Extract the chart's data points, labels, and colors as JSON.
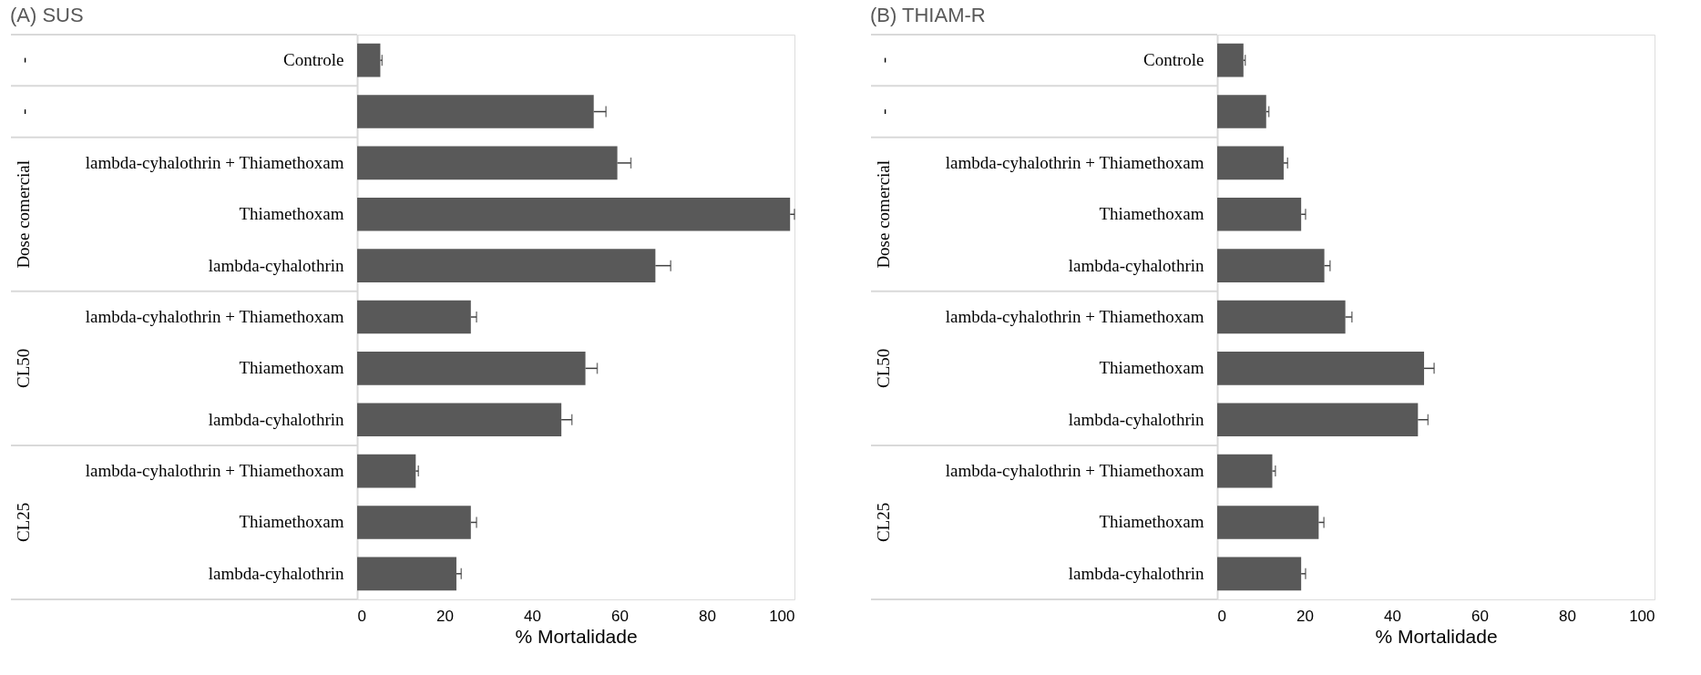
{
  "chart_data": [
    {
      "type": "bar",
      "orientation": "horizontal",
      "title": "(A) SUS",
      "xlabel": "% Mortalidade",
      "categories": [
        "Controle",
        null,
        "lambda-cyhalothrin + Thiamethoxam",
        "Thiamethoxam",
        "lambda-cyhalothrin",
        "lambda-cyhalothrin + Thiamethoxam",
        "Thiamethoxam",
        "lambda-cyhalothrin",
        "lambda-cyhalothrin + Thiamethoxam",
        "Thiamethoxam",
        "lambda-cyhalothrin"
      ],
      "values": [
        5.3,
        54.1,
        59.5,
        99.0,
        68.2,
        26.0,
        52.2,
        46.7,
        13.4,
        26.0,
        22.7
      ],
      "errors": [
        [
          5.3,
          5.7
        ],
        [
          54.1,
          56.9
        ],
        [
          59.5,
          62.6
        ],
        [
          99.0,
          100.0
        ],
        [
          68.2,
          71.7
        ],
        [
          26.0,
          27.3
        ],
        [
          52.2,
          54.9
        ],
        [
          46.7,
          49.1
        ],
        [
          13.4,
          14.0
        ],
        [
          26.0,
          27.3
        ],
        [
          22.7,
          23.8
        ]
      ],
      "color": "#595959",
      "xlim": [
        0,
        100
      ],
      "xticks": [
        0,
        20,
        40,
        60,
        80,
        100
      ],
      "grid": false,
      "annotations": [
        "-",
        "-",
        "Dose comercial",
        "CL50",
        "CL25"
      ]
    },
    {
      "type": "bar",
      "orientation": "horizontal",
      "title": "(B) THIAM-R",
      "xlabel": "% Mortalidade",
      "categories": [
        "Controle",
        null,
        "lambda-cyhalothrin + Thiamethoxam",
        "Thiamethoxam",
        "lambda-cyhalothrin",
        "lambda-cyhalothrin + Thiamethoxam",
        "Thiamethoxam",
        "lambda-cyhalothrin",
        "lambda-cyhalothrin + Thiamethoxam",
        "Thiamethoxam",
        "lambda-cyhalothrin"
      ],
      "values": [
        6.0,
        11.2,
        15.2,
        19.2,
        24.5,
        29.3,
        47.3,
        45.9,
        12.6,
        23.2,
        19.2
      ],
      "errors": [
        [
          6.0,
          6.4
        ],
        [
          11.2,
          11.8
        ],
        [
          15.2,
          16.1
        ],
        [
          19.2,
          20.2
        ],
        [
          24.5,
          25.8
        ],
        [
          29.3,
          30.8
        ],
        [
          47.3,
          49.6
        ],
        [
          45.9,
          48.2
        ],
        [
          12.6,
          13.3
        ],
        [
          23.2,
          24.4
        ],
        [
          19.2,
          20.2
        ]
      ],
      "color": "#595959",
      "xlim": [
        0,
        100
      ],
      "xticks": [
        0,
        20,
        40,
        60,
        80,
        100
      ],
      "grid": false,
      "annotations": [
        "-",
        "-",
        "Dose comercial",
        "CL50",
        "CL25"
      ]
    }
  ]
}
